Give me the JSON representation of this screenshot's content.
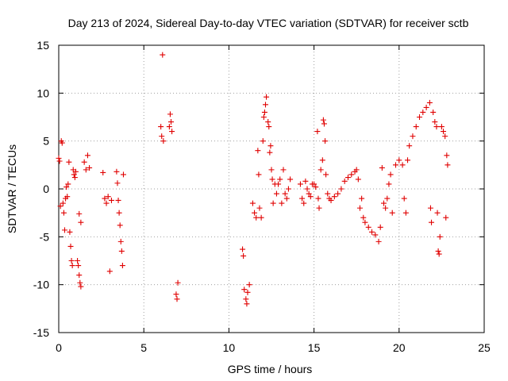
{
  "chart_data": {
    "type": "scatter",
    "title": "Day 213 of 2024, Sidereal Day-to-day VTEC variation (SDTVAR) for receiver sctb",
    "xlabel": "GPS time / hours",
    "ylabel": "SDTVAR / TECUs",
    "xlim": [
      0,
      25
    ],
    "ylim": [
      -15,
      15
    ],
    "x_ticks": [
      0,
      5,
      10,
      15,
      20,
      25
    ],
    "y_ticks": [
      -15,
      -10,
      -5,
      0,
      5,
      10,
      15
    ],
    "x_tick_labels": [
      "0",
      "5",
      "10",
      "15",
      "20",
      "25"
    ],
    "y_tick_labels": [
      "-15",
      "-10",
      "-5",
      "0",
      "5",
      "10",
      "15"
    ],
    "grid": true,
    "marker": "+",
    "series": [
      {
        "name": "SDTVAR",
        "color": "#e00000",
        "points": [
          [
            0.0,
            3.2
          ],
          [
            0.05,
            2.9
          ],
          [
            0.1,
            -1.8
          ],
          [
            0.15,
            5.0
          ],
          [
            0.2,
            4.8
          ],
          [
            0.25,
            -1.5
          ],
          [
            0.3,
            -2.5
          ],
          [
            0.35,
            -4.3
          ],
          [
            0.4,
            -1.0
          ],
          [
            0.45,
            0.2
          ],
          [
            0.5,
            -0.8
          ],
          [
            0.55,
            0.5
          ],
          [
            0.6,
            2.8
          ],
          [
            0.65,
            -4.5
          ],
          [
            0.7,
            -6.0
          ],
          [
            0.75,
            -7.5
          ],
          [
            0.8,
            -8.0
          ],
          [
            0.85,
            2.0
          ],
          [
            0.9,
            1.5
          ],
          [
            0.95,
            1.2
          ],
          [
            1.0,
            1.8
          ],
          [
            1.1,
            -7.5
          ],
          [
            1.15,
            -8.0
          ],
          [
            1.2,
            -9.0
          ],
          [
            1.25,
            -9.8
          ],
          [
            1.3,
            -10.2
          ],
          [
            1.3,
            -3.5
          ],
          [
            1.2,
            -2.6
          ],
          [
            1.5,
            2.8
          ],
          [
            1.6,
            2.0
          ],
          [
            1.7,
            3.5
          ],
          [
            1.8,
            2.2
          ],
          [
            2.6,
            1.7
          ],
          [
            2.7,
            -1.0
          ],
          [
            2.8,
            -1.5
          ],
          [
            2.9,
            -0.8
          ],
          [
            3.0,
            -8.6
          ],
          [
            3.1,
            -1.2
          ],
          [
            3.4,
            1.8
          ],
          [
            3.45,
            0.6
          ],
          [
            3.5,
            -1.2
          ],
          [
            3.55,
            -2.5
          ],
          [
            3.6,
            -3.8
          ],
          [
            3.65,
            -5.5
          ],
          [
            3.7,
            -6.5
          ],
          [
            3.75,
            -8.0
          ],
          [
            3.8,
            1.5
          ],
          [
            6.0,
            6.5
          ],
          [
            6.05,
            5.5
          ],
          [
            6.1,
            14.0
          ],
          [
            6.15,
            5.0
          ],
          [
            6.5,
            6.5
          ],
          [
            6.55,
            7.8
          ],
          [
            6.6,
            7.0
          ],
          [
            6.65,
            6.0
          ],
          [
            6.9,
            -11.0
          ],
          [
            6.95,
            -11.5
          ],
          [
            7.0,
            -9.8
          ],
          [
            10.8,
            -6.3
          ],
          [
            10.85,
            -7.0
          ],
          [
            10.9,
            -10.5
          ],
          [
            11.0,
            -11.5
          ],
          [
            11.05,
            -12.0
          ],
          [
            11.1,
            -10.8
          ],
          [
            11.2,
            -10.0
          ],
          [
            11.4,
            -1.5
          ],
          [
            11.5,
            -2.5
          ],
          [
            11.6,
            -3.0
          ],
          [
            11.7,
            4.0
          ],
          [
            11.75,
            1.5
          ],
          [
            11.8,
            -2.0
          ],
          [
            11.9,
            -3.0
          ],
          [
            12.0,
            5.0
          ],
          [
            12.05,
            7.5
          ],
          [
            12.1,
            8.0
          ],
          [
            12.15,
            8.8
          ],
          [
            12.2,
            9.6
          ],
          [
            12.3,
            7.0
          ],
          [
            12.35,
            6.5
          ],
          [
            12.4,
            3.8
          ],
          [
            12.45,
            4.5
          ],
          [
            12.5,
            2.0
          ],
          [
            12.55,
            1.0
          ],
          [
            12.6,
            -1.5
          ],
          [
            12.7,
            0.5
          ],
          [
            12.8,
            -0.5
          ],
          [
            12.9,
            0.5
          ],
          [
            13.0,
            1.0
          ],
          [
            13.1,
            -1.5
          ],
          [
            13.2,
            2.0
          ],
          [
            13.3,
            -0.5
          ],
          [
            13.4,
            -1.0
          ],
          [
            13.5,
            0.0
          ],
          [
            13.6,
            1.0
          ],
          [
            14.2,
            0.5
          ],
          [
            14.3,
            -1.0
          ],
          [
            14.4,
            -1.5
          ],
          [
            14.5,
            0.8
          ],
          [
            14.6,
            0.0
          ],
          [
            14.7,
            -0.5
          ],
          [
            14.8,
            -0.8
          ],
          [
            14.9,
            0.5
          ],
          [
            15.0,
            0.5
          ],
          [
            15.1,
            0.2
          ],
          [
            15.2,
            6.0
          ],
          [
            15.25,
            -1.0
          ],
          [
            15.3,
            -2.0
          ],
          [
            15.4,
            2.0
          ],
          [
            15.5,
            3.0
          ],
          [
            15.55,
            7.2
          ],
          [
            15.6,
            6.8
          ],
          [
            15.65,
            5.0
          ],
          [
            15.7,
            1.5
          ],
          [
            15.8,
            -0.5
          ],
          [
            15.9,
            -1.0
          ],
          [
            16.0,
            -1.2
          ],
          [
            16.2,
            -0.8
          ],
          [
            16.4,
            -0.5
          ],
          [
            16.6,
            0.0
          ],
          [
            16.8,
            0.8
          ],
          [
            17.0,
            1.2
          ],
          [
            17.2,
            1.5
          ],
          [
            17.4,
            1.8
          ],
          [
            17.5,
            2.0
          ],
          [
            17.6,
            1.0
          ],
          [
            17.7,
            -2.0
          ],
          [
            17.8,
            -1.0
          ],
          [
            17.9,
            -3.0
          ],
          [
            18.0,
            -3.5
          ],
          [
            18.2,
            -4.0
          ],
          [
            18.4,
            -4.5
          ],
          [
            18.6,
            -4.8
          ],
          [
            18.8,
            -5.5
          ],
          [
            18.9,
            -4.0
          ],
          [
            19.0,
            2.2
          ],
          [
            19.1,
            -1.5
          ],
          [
            19.2,
            -2.0
          ],
          [
            19.3,
            -1.0
          ],
          [
            19.4,
            0.5
          ],
          [
            19.5,
            1.5
          ],
          [
            19.6,
            -2.5
          ],
          [
            19.8,
            2.5
          ],
          [
            20.0,
            3.0
          ],
          [
            20.2,
            2.5
          ],
          [
            20.3,
            -1.0
          ],
          [
            20.4,
            -2.5
          ],
          [
            20.5,
            3.0
          ],
          [
            20.6,
            4.5
          ],
          [
            20.8,
            5.5
          ],
          [
            21.0,
            6.5
          ],
          [
            21.2,
            7.5
          ],
          [
            21.4,
            8.0
          ],
          [
            21.6,
            8.5
          ],
          [
            21.8,
            9.0
          ],
          [
            21.85,
            -2.0
          ],
          [
            21.9,
            -3.5
          ],
          [
            22.0,
            8.0
          ],
          [
            22.1,
            7.0
          ],
          [
            22.2,
            6.5
          ],
          [
            22.25,
            -2.5
          ],
          [
            22.3,
            -6.5
          ],
          [
            22.35,
            -6.8
          ],
          [
            22.4,
            -5.0
          ],
          [
            22.5,
            6.5
          ],
          [
            22.6,
            6.0
          ],
          [
            22.7,
            5.5
          ],
          [
            22.75,
            -3.0
          ],
          [
            22.8,
            3.5
          ],
          [
            22.85,
            2.5
          ]
        ]
      }
    ]
  }
}
